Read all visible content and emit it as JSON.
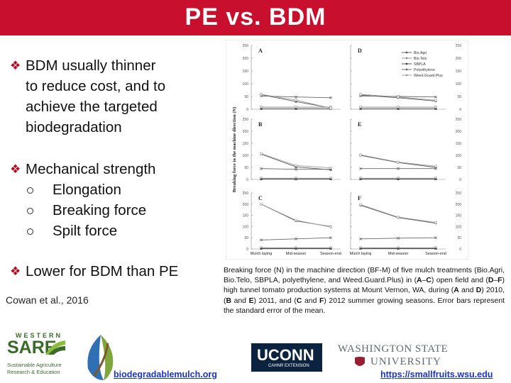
{
  "slide": {
    "title": "PE vs. BDM",
    "bullets": [
      {
        "lines": [
          "BDM usually thinner",
          "to reduce cost, and to",
          "achieve the targeted",
          "biodegradation"
        ]
      },
      {
        "lines": [
          "Mechanical strength"
        ],
        "subs": [
          "Elongation",
          "Breaking force",
          "Spilt force"
        ]
      },
      {
        "lines": [
          "Lower for BDM than PE"
        ]
      }
    ],
    "citation": "Cowan et al., 2016",
    "caption_parts": [
      "Breaking force (N) in the machine direction (BF-M) of five mulch treatments (Bio.Agri, Bio.Telo, SBPLA, polyethylene, and Weed.Guard.Plus) in (",
      "A",
      "–",
      "C",
      ") open field and (",
      "D",
      "–",
      "F",
      ") high tunnel tomato production systems at Mount Vernon, WA, during (",
      "A",
      " and ",
      "D",
      ") 2010, (",
      "B",
      " and ",
      "E",
      ") 2011, and (",
      "C",
      " and ",
      "F",
      ") 2012 summer growing seasons. Error bars represent the standard error of the mean."
    ]
  },
  "footer": {
    "sare_top": "WESTERN",
    "sare_main": "SARE",
    "sare_sub1": "Sustainable Agriculture",
    "sare_sub2": "Research & Education",
    "link1": "biodegradablemulch.org",
    "uconn": "UCONN",
    "uconn_sub": "CAHNR EXTENSION",
    "wsu1": "WASHINGTON STATE",
    "wsu2": "UNIVERSITY",
    "link2": "https://smallfruits.wsu.edu"
  },
  "chart_data": {
    "type": "line",
    "ylabel": "Breaking force in the machine direction (N)",
    "categories": [
      "Mulch laying",
      "Mid-season",
      "Season-end"
    ],
    "yticks": [
      0,
      50,
      100,
      150,
      200,
      250
    ],
    "ylim": [
      0,
      250
    ],
    "legend": [
      "Bio.Agri",
      "Bio.Telo",
      "SBPLA",
      "Polyethylene",
      "Weed.Guard.Plus"
    ],
    "legend_position": "top-right of panel D",
    "panels": [
      {
        "label": "A",
        "series": [
          {
            "name": "Bio.Agri",
            "values": [
              57,
              30,
              5
            ]
          },
          {
            "name": "Bio.Telo",
            "values": [
              8,
              8,
              8
            ]
          },
          {
            "name": "SBPLA",
            "values": [
              2,
              2,
              2
            ]
          },
          {
            "name": "Polyethylene",
            "values": [
              52,
              48,
              45
            ]
          },
          {
            "name": "Weed.Guard.Plus",
            "values": [
              58,
              36,
              4
            ]
          }
        ]
      },
      {
        "label": "B",
        "series": [
          {
            "name": "Bio.Agri",
            "values": [
              105,
              52,
              40
            ]
          },
          {
            "name": "Bio.Telo",
            "values": [
              5,
              5,
              5
            ]
          },
          {
            "name": "SBPLA",
            "values": [
              2,
              2,
              2
            ]
          },
          {
            "name": "Polyethylene",
            "values": [
              45,
              42,
              42
            ]
          },
          {
            "name": "Weed.Guard.Plus",
            "values": [
              107,
              58,
              48
            ]
          }
        ]
      },
      {
        "label": "C",
        "series": [
          {
            "name": "Bio.Agri",
            "values": [
              200,
              125,
              100
            ]
          },
          {
            "name": "Bio.Telo",
            "values": [
              5,
              5,
              5
            ]
          },
          {
            "name": "SBPLA",
            "values": [
              2,
              2,
              2
            ]
          },
          {
            "name": "Polyethylene",
            "values": [
              40,
              45,
              50
            ]
          },
          {
            "name": "Weed.Guard.Plus",
            "values": [
              200,
              128,
              98
            ]
          }
        ]
      },
      {
        "label": "D",
        "series": [
          {
            "name": "Bio.Agri",
            "values": [
              55,
              45,
              32
            ]
          },
          {
            "name": "Bio.Telo",
            "values": [
              8,
              8,
              8
            ]
          },
          {
            "name": "SBPLA",
            "values": [
              2,
              2,
              2
            ]
          },
          {
            "name": "Polyethylene",
            "values": [
              52,
              50,
              48
            ]
          },
          {
            "name": "Weed.Guard.Plus",
            "values": [
              58,
              48,
              35
            ]
          }
        ]
      },
      {
        "label": "E",
        "series": [
          {
            "name": "Bio.Agri",
            "values": [
              100,
              70,
              50
            ]
          },
          {
            "name": "Bio.Telo",
            "values": [
              5,
              5,
              5
            ]
          },
          {
            "name": "SBPLA",
            "values": [
              2,
              2,
              2
            ]
          },
          {
            "name": "Polyethylene",
            "values": [
              45,
              45,
              45
            ]
          },
          {
            "name": "Weed.Guard.Plus",
            "values": [
              102,
              72,
              55
            ]
          }
        ]
      },
      {
        "label": "F",
        "series": [
          {
            "name": "Bio.Agri",
            "values": [
              195,
              140,
              115
            ]
          },
          {
            "name": "Bio.Telo",
            "values": [
              5,
              5,
              5
            ]
          },
          {
            "name": "SBPLA",
            "values": [
              2,
              2,
              2
            ]
          },
          {
            "name": "Polyethylene",
            "values": [
              45,
              48,
              50
            ]
          },
          {
            "name": "Weed.Guard.Plus",
            "values": [
              198,
              142,
              118
            ]
          }
        ]
      }
    ]
  }
}
